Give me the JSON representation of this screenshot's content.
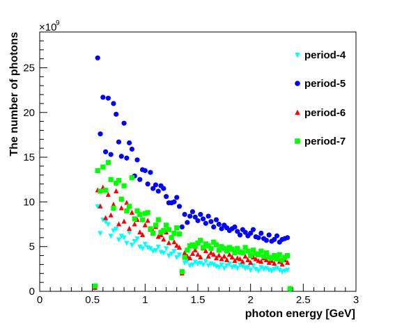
{
  "chart_data": {
    "type": "scatter",
    "title": "",
    "xlabel": "photon energy [GeV]",
    "ylabel": "The number of photons",
    "y_exponent_base": "×10",
    "y_exponent_power": "9",
    "xlim": [
      0,
      3
    ],
    "ylim": [
      0,
      29
    ],
    "x_ticks": [
      0,
      0.5,
      1,
      1.5,
      2,
      2.5,
      3
    ],
    "x_tick_labels": [
      "0",
      "0.5",
      "1",
      "1.5",
      "2",
      "2.5",
      "3"
    ],
    "y_ticks": [
      0,
      5,
      10,
      15,
      20,
      25
    ],
    "y_tick_labels": [
      "0",
      "5",
      "10",
      "15",
      "20",
      "25"
    ],
    "grid": false,
    "legend_position": "top-right",
    "units": "×10^9 photons",
    "x": [
      0.525,
      0.55,
      0.575,
      0.6,
      0.625,
      0.65,
      0.675,
      0.7,
      0.725,
      0.75,
      0.775,
      0.8,
      0.825,
      0.85,
      0.875,
      0.9,
      0.925,
      0.95,
      0.975,
      1.0,
      1.025,
      1.05,
      1.075,
      1.1,
      1.125,
      1.15,
      1.175,
      1.2,
      1.225,
      1.25,
      1.275,
      1.3,
      1.325,
      1.35,
      1.375,
      1.4,
      1.425,
      1.45,
      1.475,
      1.5,
      1.525,
      1.55,
      1.575,
      1.6,
      1.625,
      1.65,
      1.675,
      1.7,
      1.725,
      1.75,
      1.775,
      1.8,
      1.825,
      1.85,
      1.875,
      1.9,
      1.925,
      1.95,
      1.975,
      2.0,
      2.025,
      2.05,
      2.075,
      2.1,
      2.125,
      2.15,
      2.175,
      2.2,
      2.225,
      2.25,
      2.275,
      2.3,
      2.325,
      2.35,
      2.375
    ],
    "series": [
      {
        "name": "period-4",
        "marker": "triangle-down",
        "color": "#00ffff",
        "values": [
          0.3,
          9.5,
          6.5,
          8.0,
          7.8,
          7.5,
          6.2,
          6.8,
          7.0,
          5.8,
          6.2,
          6.0,
          5.4,
          6.6,
          5.2,
          5.6,
          5.9,
          5.0,
          4.8,
          5.3,
          4.9,
          4.8,
          4.5,
          4.6,
          5.0,
          4.4,
          4.3,
          4.8,
          4.0,
          4.2,
          4.5,
          3.8,
          4.1,
          2.2,
          3.2,
          3.4,
          2.9,
          3.0,
          3.3,
          3.1,
          3.2,
          3.0,
          3.4,
          2.9,
          3.1,
          3.0,
          2.8,
          2.7,
          3.0,
          2.6,
          2.9,
          3.1,
          2.7,
          2.8,
          2.6,
          3.0,
          2.8,
          2.6,
          2.7,
          2.4,
          2.9,
          2.5,
          2.3,
          2.7,
          2.5,
          2.6,
          2.4,
          2.3,
          2.5,
          2.6,
          2.4,
          2.2,
          2.3,
          2.4,
          0.2
        ]
      },
      {
        "name": "period-5",
        "marker": "circle",
        "color": "#0000ff",
        "values": [
          0.5,
          26.1,
          17.6,
          21.7,
          15.6,
          21.6,
          15.3,
          21.0,
          19.8,
          16.7,
          15.1,
          18.8,
          14.9,
          16.6,
          15.9,
          12.9,
          14.7,
          12.5,
          13.6,
          13.5,
          12.0,
          13.3,
          11.5,
          11.9,
          11.2,
          11.8,
          11.5,
          10.6,
          9.9,
          9.9,
          10.0,
          10.5,
          9.5,
          7.2,
          8.6,
          7.7,
          8.4,
          8.9,
          8.3,
          7.9,
          8.6,
          8.1,
          7.6,
          8.4,
          7.8,
          7.2,
          8.0,
          7.5,
          7.0,
          7.4,
          7.1,
          6.8,
          7.0,
          7.2,
          6.7,
          6.3,
          6.9,
          6.6,
          6.2,
          6.5,
          6.9,
          6.1,
          6.0,
          6.5,
          5.9,
          5.7,
          6.3,
          5.6,
          5.8,
          6.2,
          5.5,
          5.8,
          5.9,
          6.0,
          0.3
        ]
      },
      {
        "name": "period-6",
        "marker": "triangle-up",
        "color": "#ff0000",
        "values": [
          0.4,
          11.3,
          9.5,
          11.6,
          8.2,
          10.8,
          8.5,
          9.7,
          11.2,
          7.5,
          9.3,
          7.8,
          9.9,
          7.0,
          8.8,
          7.5,
          8.0,
          6.6,
          6.3,
          7.4,
          7.9,
          6.9,
          6.7,
          7.2,
          6.1,
          6.3,
          5.8,
          6.6,
          5.4,
          6.0,
          5.5,
          5.1,
          4.9,
          2.0,
          4.3,
          3.9,
          3.7,
          4.2,
          4.6,
          4.1,
          3.8,
          4.8,
          4.5,
          3.9,
          4.3,
          4.1,
          3.7,
          4.0,
          3.6,
          3.9,
          3.5,
          4.1,
          3.8,
          3.4,
          3.7,
          3.6,
          3.3,
          3.9,
          3.5,
          3.2,
          3.8,
          3.6,
          3.4,
          3.3,
          3.7,
          3.5,
          3.2,
          3.4,
          3.1,
          3.6,
          3.3,
          3.0,
          3.5,
          3.2,
          0.3
        ]
      },
      {
        "name": "period-7",
        "marker": "square",
        "color": "#00ff00",
        "values": [
          0.6,
          13.5,
          11.2,
          13.9,
          11.3,
          14.4,
          12.5,
          9.3,
          12.1,
          12.4,
          10.3,
          11.8,
          9.0,
          9.5,
          12.7,
          8.1,
          9.0,
          8.6,
          8.0,
          8.7,
          8.8,
          7.0,
          6.5,
          7.4,
          8.0,
          6.6,
          6.8,
          7.4,
          6.9,
          6.0,
          6.5,
          7.1,
          6.4,
          2.2,
          3.8,
          4.6,
          5.1,
          5.2,
          5.0,
          5.4,
          5.7,
          4.9,
          5.3,
          5.1,
          4.8,
          5.5,
          5.2,
          4.6,
          5.0,
          4.8,
          4.5,
          4.9,
          4.7,
          4.3,
          4.8,
          4.4,
          4.3,
          4.9,
          4.5,
          4.0,
          4.6,
          4.2,
          4.1,
          4.5,
          3.9,
          4.3,
          3.8,
          3.7,
          4.0,
          3.6,
          4.1,
          3.5,
          3.8,
          4.0,
          0.3
        ]
      }
    ]
  }
}
